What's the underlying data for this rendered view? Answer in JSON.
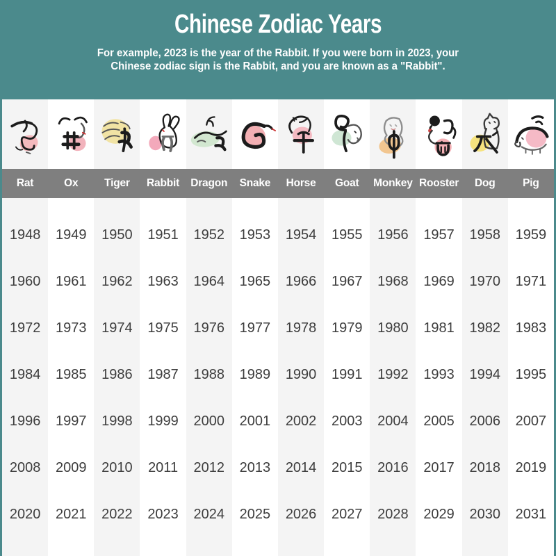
{
  "header": {
    "title": "Chinese Zodiac Years",
    "subtitle": "For example, 2023 is the year of the Rabbit. If you were born in 2023, your\nChinese zodiac sign is the Rabbit, and you are known as a \"Rabbit\"."
  },
  "colors": {
    "header_bg": "#4b8a8c",
    "header_text": "#ffffff",
    "band_bg": "#7f7f7f",
    "label_text": "#ffffff",
    "col_odd_bg": "#f4f4f4",
    "col_even_bg": "#ffffff",
    "year_text": "#3d3d3d",
    "ink": "#1c1c1c",
    "accent_red": "#cc3333"
  },
  "zodiac": {
    "animals": [
      {
        "label": "Rat",
        "icon": "rat-icon",
        "blob": "#f4b9bd"
      },
      {
        "label": "Ox",
        "icon": "ox-icon",
        "blob": "#f2b3bc"
      },
      {
        "label": "Tiger",
        "icon": "tiger-icon",
        "blob": "#f1e3a4"
      },
      {
        "label": "Rabbit",
        "icon": "rabbit-icon",
        "blob": "#f3a9bb"
      },
      {
        "label": "Dragon",
        "icon": "dragon-icon",
        "blob": "#d2e7d0"
      },
      {
        "label": "Snake",
        "icon": "snake-icon",
        "blob": "#f3afb3"
      },
      {
        "label": "Horse",
        "icon": "horse-icon",
        "blob": "#f4bac2"
      },
      {
        "label": "Goat",
        "icon": "goat-icon",
        "blob": "#cfe6d4"
      },
      {
        "label": "Monkey",
        "icon": "monkey-icon",
        "blob": "#f2c690"
      },
      {
        "label": "Rooster",
        "icon": "rooster-icon",
        "blob": "#f4b0b5"
      },
      {
        "label": "Dog",
        "icon": "dog-icon",
        "blob": "#f6e37e"
      },
      {
        "label": "Pig",
        "icon": "pig-icon",
        "blob": "#f5bac6"
      }
    ]
  },
  "chart_data": {
    "type": "table",
    "title": "Chinese Zodiac Years",
    "columns": [
      "Rat",
      "Ox",
      "Tiger",
      "Rabbit",
      "Dragon",
      "Snake",
      "Horse",
      "Goat",
      "Monkey",
      "Rooster",
      "Dog",
      "Pig"
    ],
    "rows": [
      [
        1948,
        1949,
        1950,
        1951,
        1952,
        1953,
        1954,
        1955,
        1956,
        1957,
        1958,
        1959
      ],
      [
        1960,
        1961,
        1962,
        1963,
        1964,
        1965,
        1966,
        1967,
        1968,
        1969,
        1970,
        1971
      ],
      [
        1972,
        1973,
        1974,
        1975,
        1976,
        1977,
        1978,
        1979,
        1980,
        1981,
        1982,
        1983
      ],
      [
        1984,
        1985,
        1986,
        1987,
        1988,
        1989,
        1990,
        1991,
        1992,
        1993,
        1994,
        1995
      ],
      [
        1996,
        1997,
        1998,
        1999,
        2000,
        2001,
        2002,
        2003,
        2004,
        2005,
        2006,
        2007
      ],
      [
        2008,
        2009,
        2010,
        2011,
        2012,
        2013,
        2014,
        2015,
        2016,
        2017,
        2018,
        2019
      ],
      [
        2020,
        2021,
        2022,
        2023,
        2024,
        2025,
        2026,
        2027,
        2028,
        2029,
        2030,
        2031
      ]
    ]
  }
}
